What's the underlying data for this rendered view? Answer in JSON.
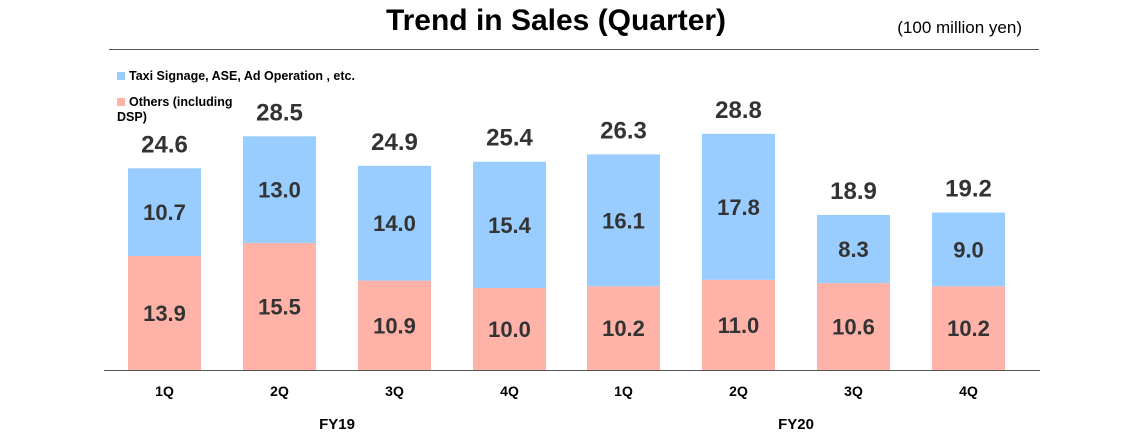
{
  "title": "Trend in Sales (Quarter)",
  "unit": "(100 million yen)",
  "colors": {
    "blue": "#99CCFF",
    "pink": "#FFB3A8",
    "axis": "#555555"
  },
  "chart_data": {
    "type": "bar",
    "stacked": true,
    "categories": [
      "1Q",
      "2Q",
      "3Q",
      "4Q",
      "1Q",
      "2Q",
      "3Q",
      "4Q"
    ],
    "groups": [
      {
        "label": "FY19",
        "categories": [
          0,
          1,
          2,
          3
        ]
      },
      {
        "label": "FY20",
        "categories": [
          4,
          5,
          6,
          7
        ]
      }
    ],
    "series": [
      {
        "name": "Others (including DSP)",
        "color": "#FFB3A8",
        "values": [
          13.9,
          15.5,
          10.9,
          10.0,
          10.2,
          11.0,
          10.6,
          10.2
        ],
        "labels": [
          "13.9",
          "15.5",
          "10.9",
          "10.0",
          "10.2",
          "11.0",
          "10.6",
          "10.2"
        ]
      },
      {
        "name": "Taxi Signage, ASE, Ad Operation , etc.",
        "color": "#99CCFF",
        "values": [
          10.7,
          13.0,
          14.0,
          15.4,
          16.1,
          17.8,
          8.3,
          9.0
        ],
        "labels": [
          "10.7",
          "13.0",
          "14.0",
          "15.4",
          "16.1",
          "17.8",
          "8.3",
          "9.0"
        ]
      }
    ],
    "totals": [
      24.6,
      28.5,
      24.9,
      25.4,
      26.3,
      28.8,
      18.9,
      19.2
    ],
    "total_labels": [
      "24.6",
      "28.5",
      "24.9",
      "25.4",
      "26.3",
      "28.8",
      "18.9",
      "19.2"
    ],
    "ylim": [
      0,
      30
    ],
    "legend_position": "top-left",
    "grid": false
  }
}
